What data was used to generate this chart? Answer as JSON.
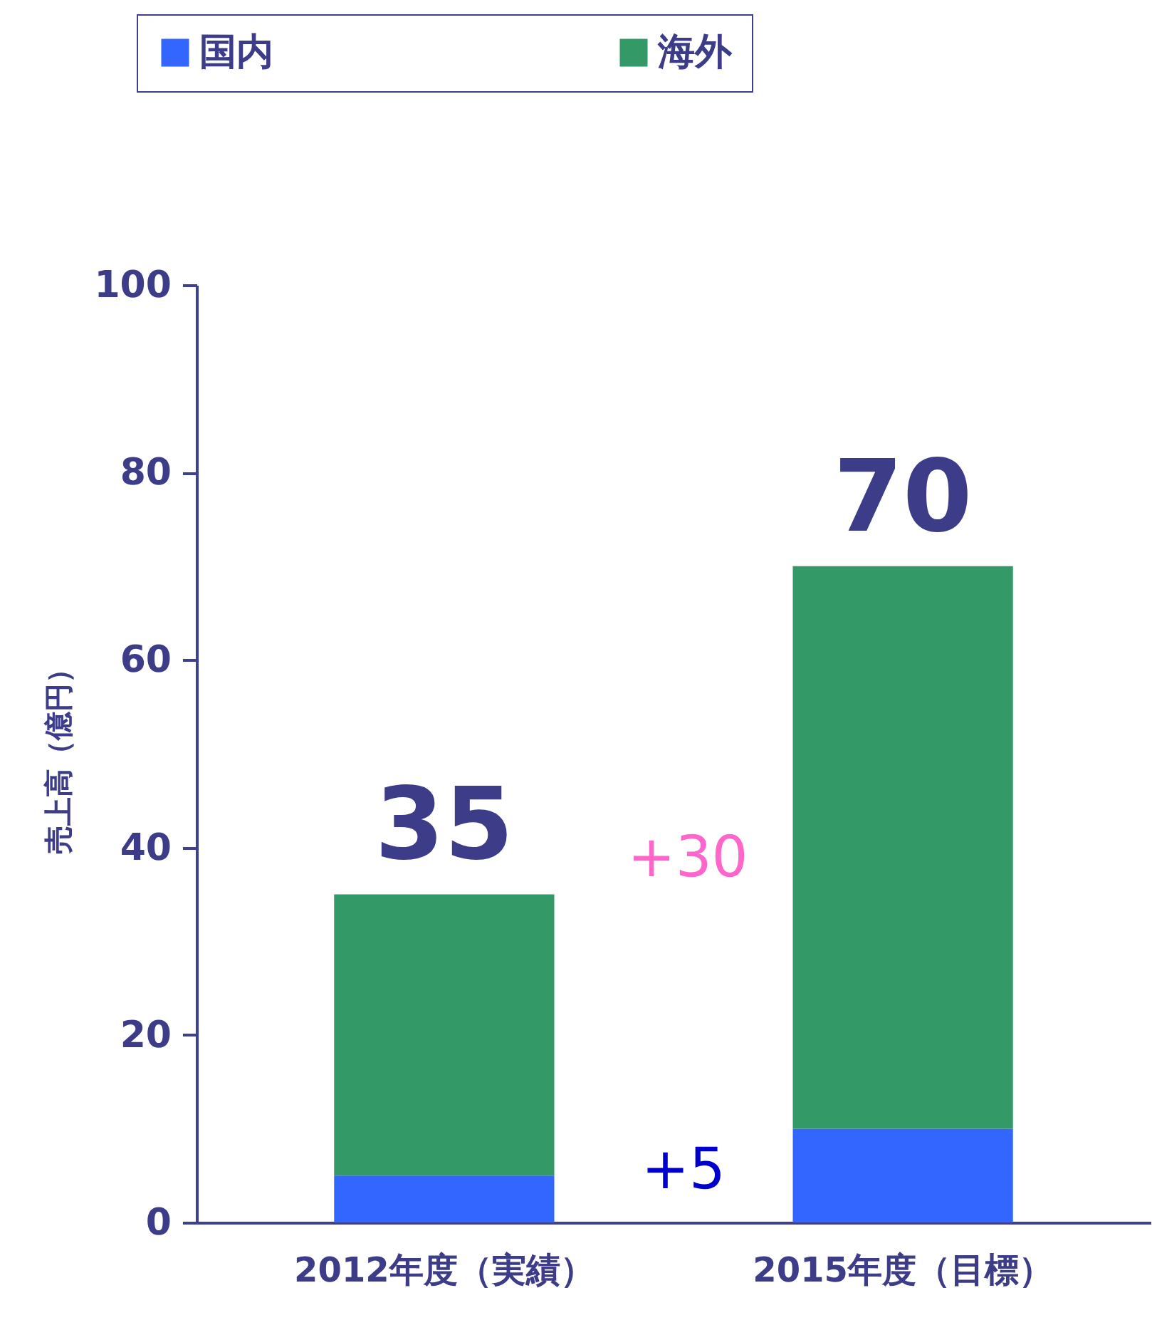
{
  "chart_data": {
    "type": "bar",
    "stacked": true,
    "categories": [
      "2012年度（実績）",
      "2015年度（目標）"
    ],
    "series": [
      {
        "name": "国内",
        "color": "#3366ff",
        "values": [
          5,
          10
        ]
      },
      {
        "name": "海外",
        "color": "#339966",
        "values": [
          30,
          60
        ]
      }
    ],
    "ylabel": "売上高（億円）",
    "ylim": [
      0,
      100
    ],
    "yticks": [
      0,
      20,
      40,
      60,
      80,
      100
    ],
    "totals": [
      "35",
      "70"
    ],
    "annotations": [
      "+30",
      "+5"
    ],
    "legend": "top",
    "grid": false
  }
}
